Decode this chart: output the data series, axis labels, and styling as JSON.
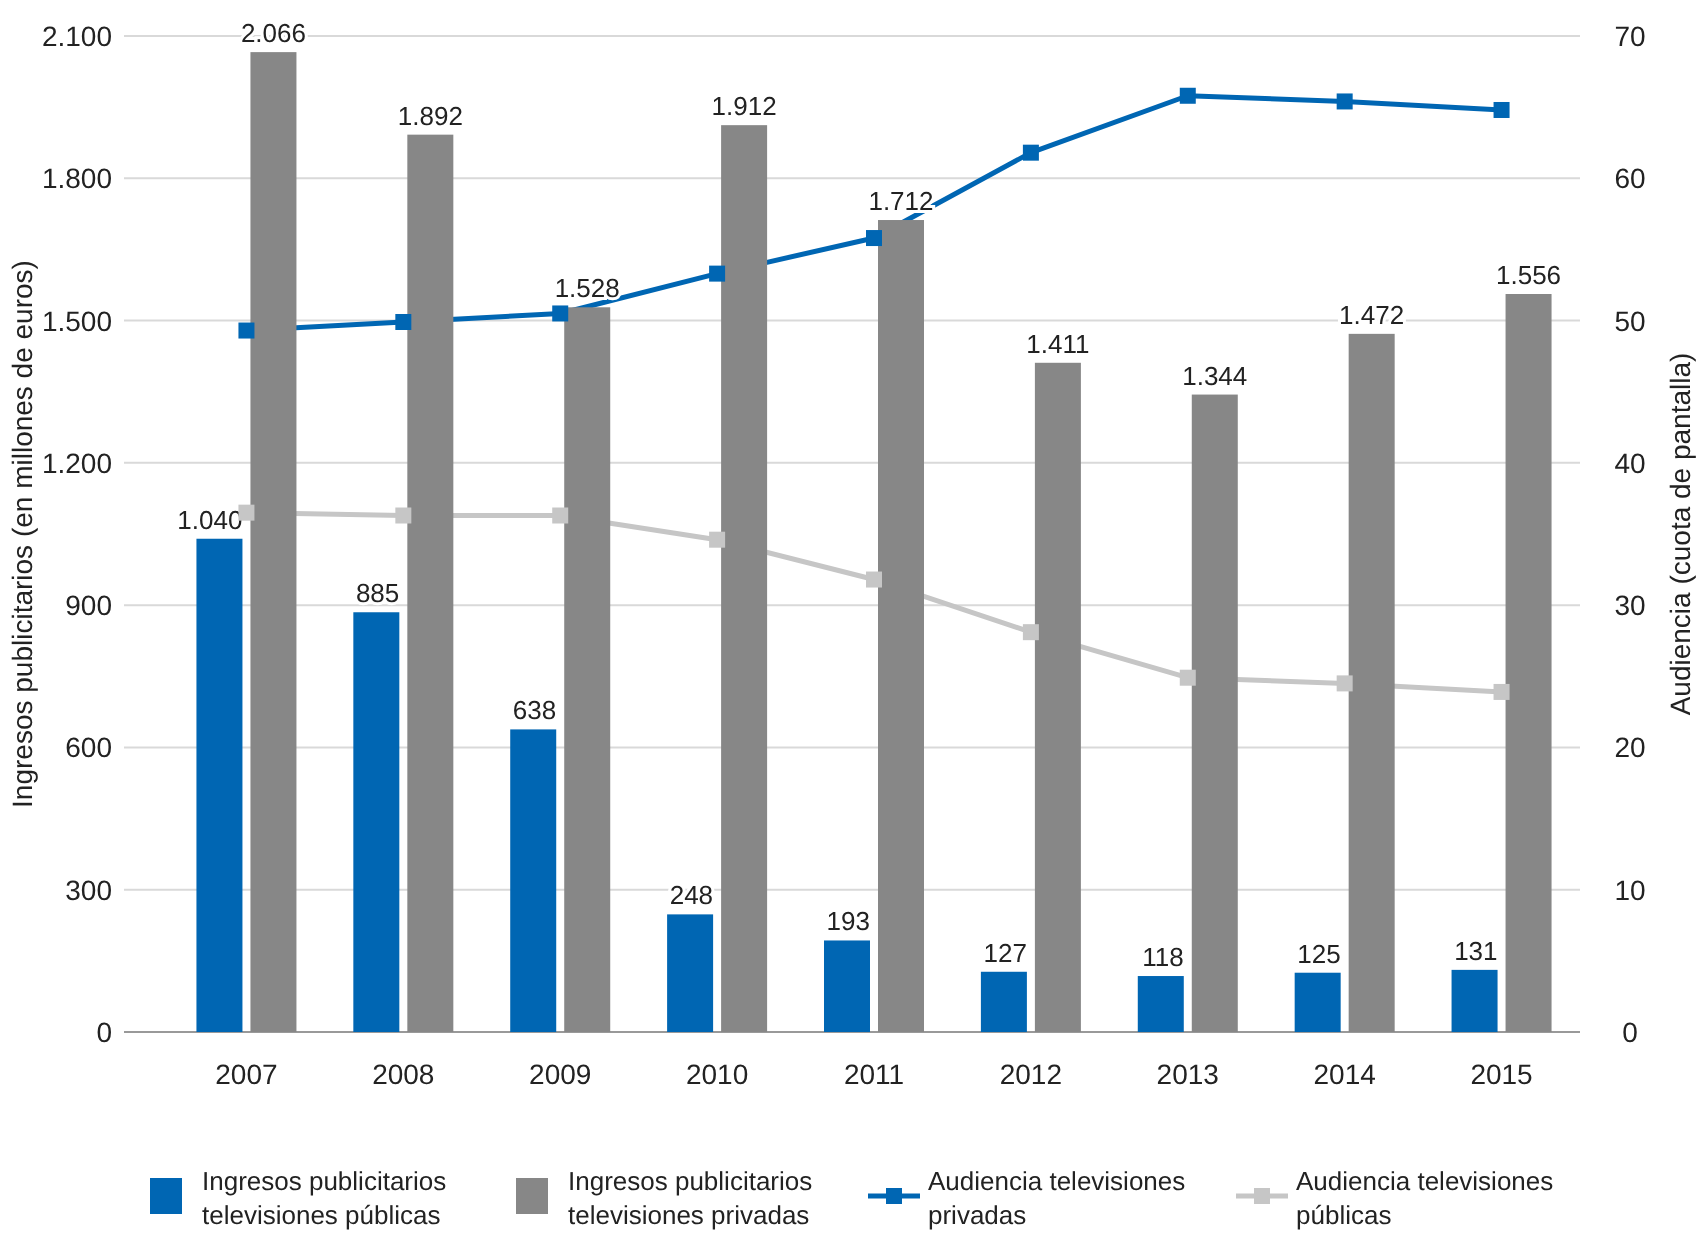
{
  "chart_data": {
    "type": "bar",
    "ylabel": "Ingresos publicitarios (en millones de euros)",
    "y2label": "Audiencia (cuota de pantalla)",
    "categories": [
      "2007",
      "2008",
      "2009",
      "2010",
      "2011",
      "2012",
      "2013",
      "2014",
      "2015"
    ],
    "series": [
      {
        "name": "Ingresos publicitarios televisiones públicas",
        "color": "#0066b3",
        "values": [
          1040,
          885,
          638,
          248,
          193,
          127,
          118,
          125,
          131
        ],
        "value_labels": [
          "1.040",
          "885",
          "638",
          "248",
          "193",
          "127",
          "118",
          "125",
          "131"
        ]
      },
      {
        "name": "Ingresos publicitarios televisiones privadas",
        "color": "#878787",
        "values": [
          2066,
          1892,
          1528,
          1912,
          1712,
          1411,
          1344,
          1472,
          1556
        ],
        "value_labels": [
          "2.066",
          "1.892",
          "1.528",
          "1.912",
          "1.712",
          "1.411",
          "1.344",
          "1.472",
          "1.556"
        ]
      },
      {
        "name": "Audiencia televisiones privadas",
        "type": "line",
        "axis": "y2",
        "color": "#0066b3",
        "marker": "square",
        "values": [
          49.3,
          49.9,
          50.5,
          53.3,
          55.8,
          61.8,
          65.8,
          65.4,
          64.8
        ]
      },
      {
        "name": "Audiencia televisiones públicas",
        "type": "line",
        "axis": "y2",
        "color": "#c6c6c6",
        "marker": "square",
        "values": [
          36.5,
          36.3,
          36.3,
          34.6,
          31.8,
          28.1,
          24.9,
          24.5,
          23.9
        ]
      }
    ],
    "ylim": [
      0,
      2100
    ],
    "yticks": [
      0,
      {
        "value": 300,
        "label": "300"
      },
      {
        "value": 600,
        "label": "600"
      },
      {
        "value": 900,
        "label": "900"
      },
      {
        "value": 1200,
        "label": "1.200"
      },
      {
        "value": 1500,
        "label": "1.500"
      },
      {
        "value": 1800,
        "label": "1.800"
      },
      {
        "value": 2100,
        "label": "2.100"
      }
    ],
    "y2lim": [
      0,
      70
    ],
    "y2ticks": [
      0,
      10,
      20,
      30,
      40,
      50,
      60,
      70
    ],
    "grid": "y",
    "legend": "bottom",
    "line_style": "solid"
  }
}
